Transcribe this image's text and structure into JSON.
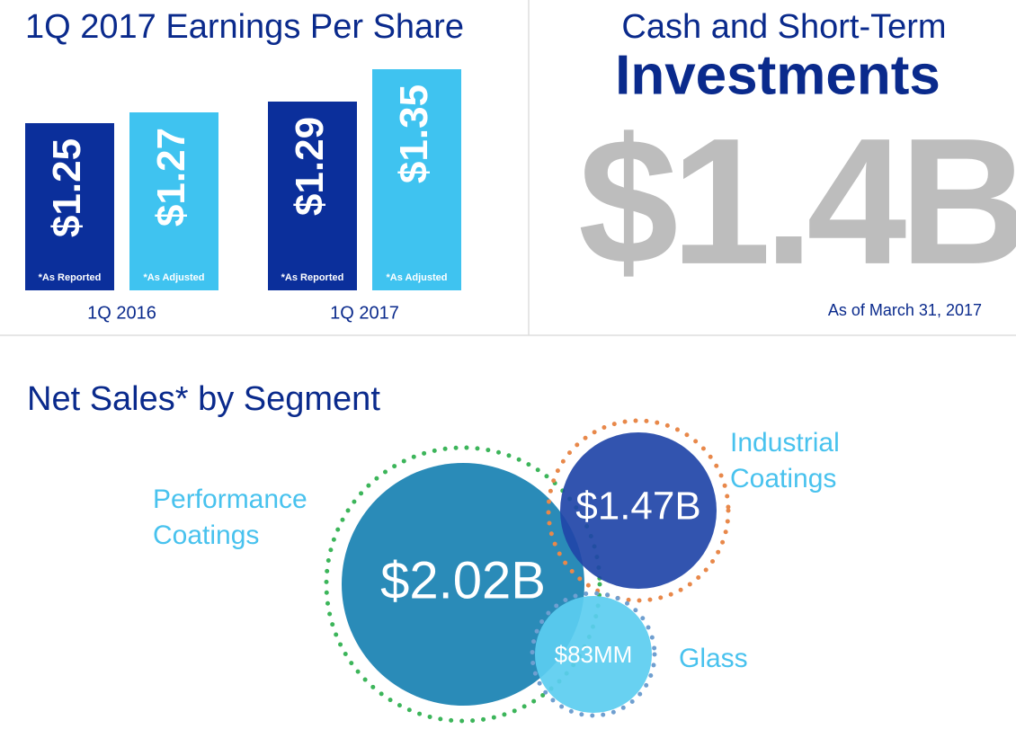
{
  "chart_data": [
    {
      "type": "bar",
      "title": "1Q 2017 Earnings Per Share",
      "categories": [
        "1Q 2016",
        "1Q 2017"
      ],
      "ylim": [
        0.94,
        1.4
      ],
      "series": [
        {
          "name": "*As Reported",
          "color": "#0b2f9b",
          "values": [
            1.25,
            1.29
          ],
          "value_labels": [
            "$1.25",
            "$1.29"
          ]
        },
        {
          "name": "*As Adjusted",
          "color": "#3fc3f0",
          "values": [
            1.27,
            1.35
          ],
          "value_labels": [
            "$1.27",
            "$1.35"
          ]
        }
      ]
    },
    {
      "type": "bubble",
      "title": "Net Sales* by Segment",
      "categories": [
        "Performance Coatings",
        "Industrial Coatings",
        "Glass"
      ],
      "values": [
        2.02,
        1.47,
        0.083
      ],
      "value_labels": [
        "$2.02B",
        "$1.47B",
        "$83MM"
      ],
      "colors": [
        "#2a8bb8",
        "#2145a8",
        "#5bcdf0"
      ],
      "ring_colors": [
        "#3cb55a",
        "#e8884a",
        "#6f9fd0"
      ]
    }
  ],
  "cash": {
    "title_line1": "Cash and Short-Term",
    "title_line2": "Investments",
    "value": "$1.4B",
    "note": "As of March 31, 2017"
  }
}
